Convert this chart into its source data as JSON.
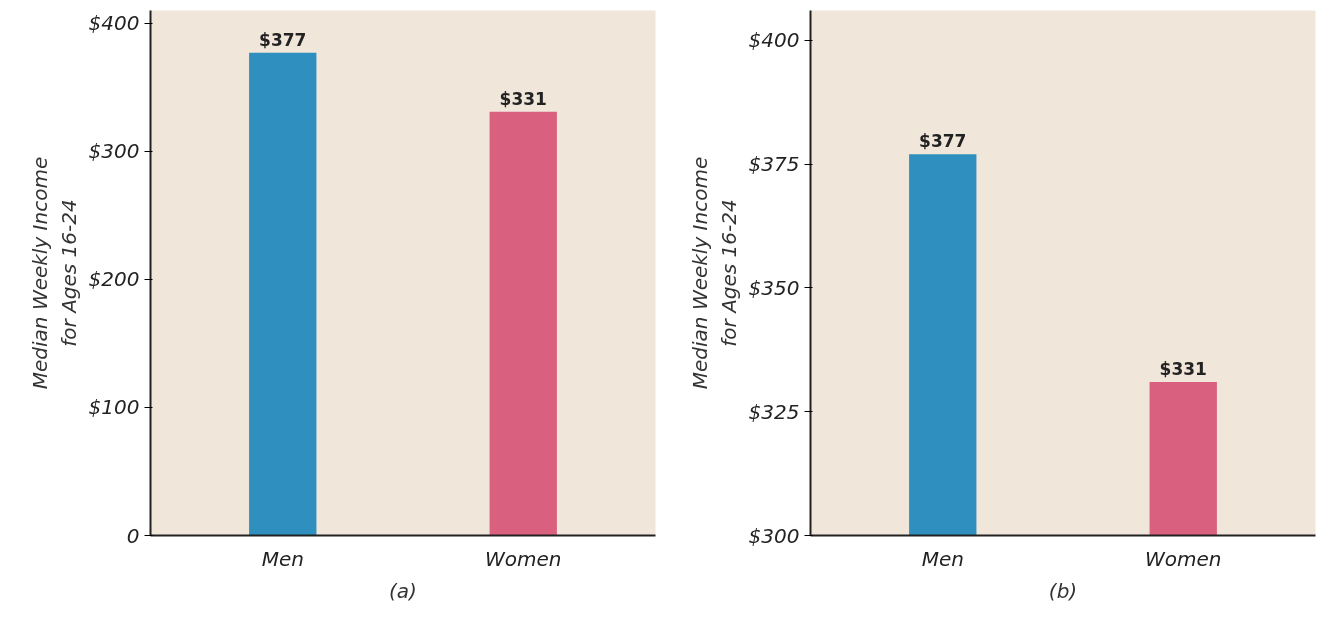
{
  "chart_data": [
    {
      "type": "bar",
      "categories": [
        "Men",
        "Women"
      ],
      "values": [
        377,
        331
      ],
      "colors": [
        "#2f8fbf",
        "#d9607f"
      ],
      "value_labels": [
        "$377",
        "$331"
      ],
      "ylabel": "Median Weekly Income\nfor Ages 16-24",
      "xlabel": "(a)",
      "ylim": [
        0,
        410
      ],
      "yticks": [
        {
          "value": 0,
          "label": "0"
        },
        {
          "value": 100,
          "label": "$100"
        },
        {
          "value": 200,
          "label": "$200"
        },
        {
          "value": 300,
          "label": "$300"
        },
        {
          "value": 400,
          "label": "$400"
        }
      ],
      "grid": false
    },
    {
      "type": "bar",
      "categories": [
        "Men",
        "Women"
      ],
      "values": [
        377,
        331
      ],
      "colors": [
        "#2f8fbf",
        "#d9607f"
      ],
      "value_labels": [
        "$377",
        "$331"
      ],
      "ylabel": "Median Weekly Income\nfor Ages 16-24",
      "xlabel": "(b)",
      "ylim": [
        300,
        406
      ],
      "yticks": [
        {
          "value": 300,
          "label": "$300"
        },
        {
          "value": 325,
          "label": "$325"
        },
        {
          "value": 350,
          "label": "$350"
        },
        {
          "value": 375,
          "label": "$375"
        },
        {
          "value": 400,
          "label": "$400"
        }
      ],
      "grid": false
    }
  ]
}
